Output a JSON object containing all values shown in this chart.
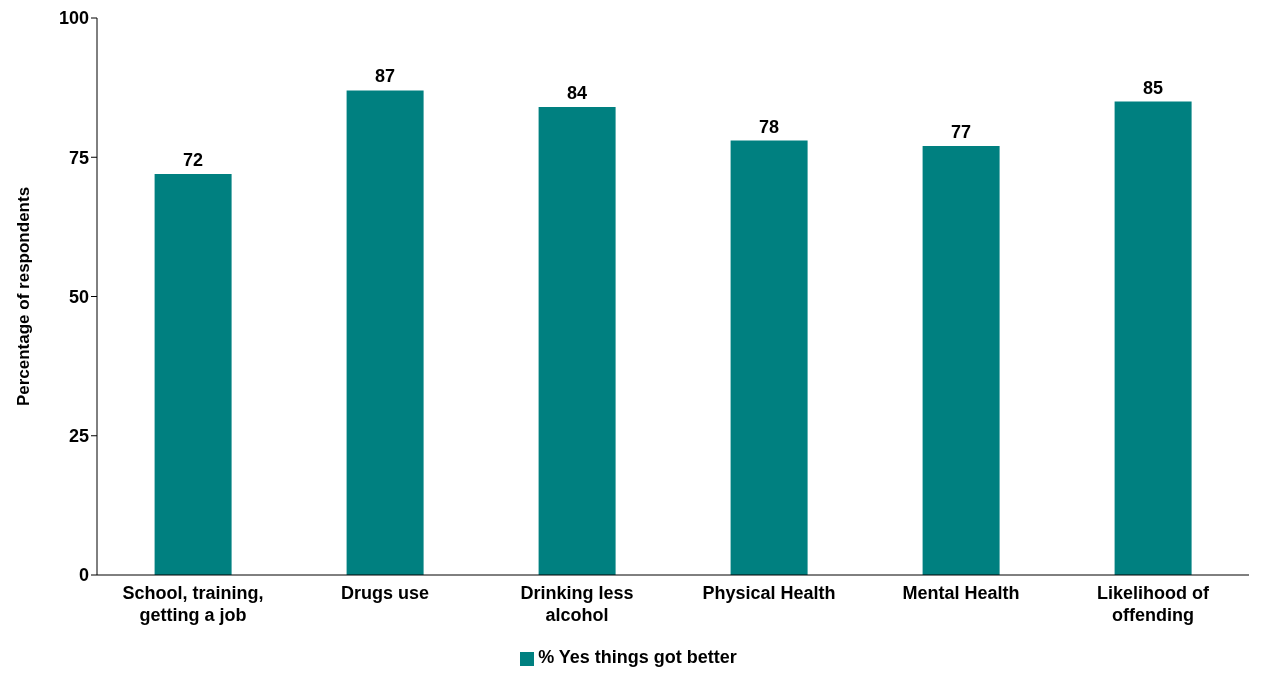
{
  "chart_data": {
    "type": "bar",
    "ylabel": "Percentage of respondents",
    "categories": [
      "School, training, getting a job",
      "Drugs use",
      "Drinking less alcohol",
      "Physical Health",
      "Mental Health",
      "Likelihood of offending"
    ],
    "series": [
      {
        "name": "% Yes things got better",
        "color": "#008080",
        "values": [
          72,
          87,
          84,
          78,
          77,
          85
        ]
      }
    ],
    "ylim": [
      0,
      100
    ],
    "yticks": [
      0,
      25,
      50,
      75,
      100
    ],
    "grid": false,
    "legend": "bottom",
    "data_labels": true
  }
}
